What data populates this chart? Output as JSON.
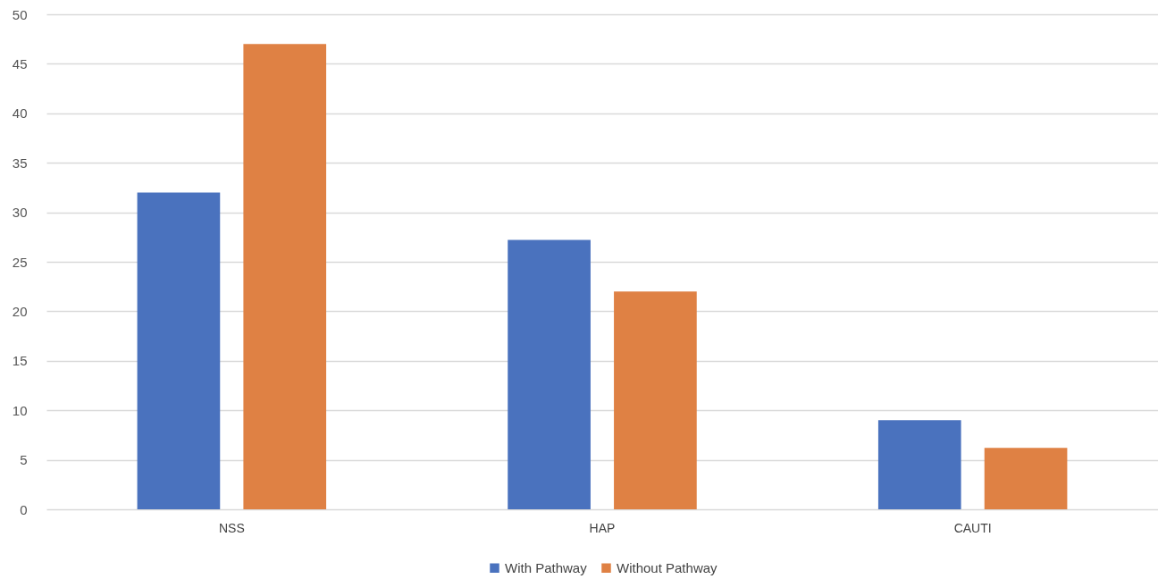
{
  "chart_data": {
    "type": "bar",
    "categories": [
      "NSS",
      "HAP",
      "CAUTI"
    ],
    "series": [
      {
        "name": "With Pathway",
        "color": "#4a72be",
        "values": [
          32,
          27.2,
          9
        ]
      },
      {
        "name": "Without Pathway",
        "color": "#df8144",
        "values": [
          47,
          22,
          6.2
        ]
      }
    ],
    "ylim": [
      0,
      50
    ],
    "yticks": [
      0,
      5,
      10,
      15,
      20,
      25,
      30,
      35,
      40,
      45,
      50
    ],
    "grid": "y",
    "legend": "bottom"
  }
}
